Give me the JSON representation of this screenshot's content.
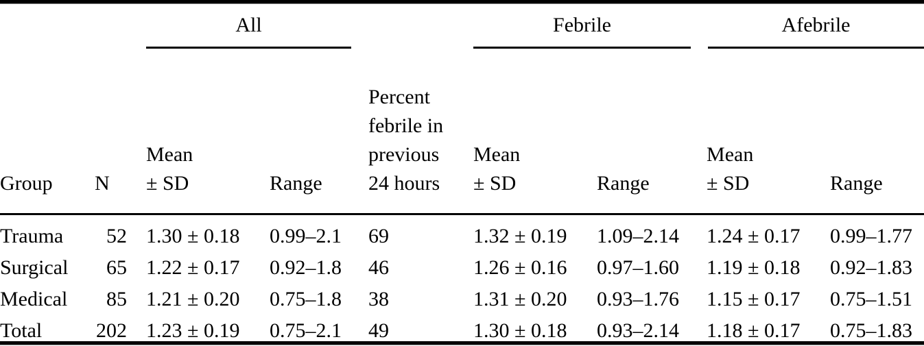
{
  "table": {
    "group_header": {
      "all": "All",
      "febrile": "Febrile",
      "afebrile": "Afebrile"
    },
    "columns": {
      "group": "Group",
      "n": "N",
      "mean_sd": "Mean\n± SD",
      "range": "Range",
      "pct_febrile": "Percent\nfebrile in\nprevious\n24 hours"
    },
    "rows": [
      {
        "group": "Trauma",
        "n": "52",
        "all_mean_sd": "1.30 ± 0.18",
        "all_range": "0.99–2.1",
        "pct_febrile": "69",
        "feb_mean_sd": "1.32 ± 0.19",
        "feb_range": "1.09–2.14",
        "afeb_mean_sd": "1.24 ± 0.17",
        "afeb_range": "0.99–1.77"
      },
      {
        "group": "Surgical",
        "n": "65",
        "all_mean_sd": "1.22 ± 0.17",
        "all_range": "0.92–1.8",
        "pct_febrile": "46",
        "feb_mean_sd": "1.26 ± 0.16",
        "feb_range": "0.97–1.60",
        "afeb_mean_sd": "1.19 ± 0.18",
        "afeb_range": "0.92–1.83"
      },
      {
        "group": "Medical",
        "n": "85",
        "all_mean_sd": "1.21 ± 0.20",
        "all_range": "0.75–1.8",
        "pct_febrile": "38",
        "feb_mean_sd": "1.31 ± 0.20",
        "feb_range": "0.93–1.76",
        "afeb_mean_sd": "1.15 ± 0.17",
        "afeb_range": "0.75–1.51"
      },
      {
        "group": "Total",
        "n": "202",
        "all_mean_sd": "1.23 ± 0.19",
        "all_range": "0.75–2.1",
        "pct_febrile": "49",
        "feb_mean_sd": "1.30 ± 0.18",
        "feb_range": "0.93–2.14",
        "afeb_mean_sd": "1.18 ± 0.17",
        "afeb_range": "0.75–1.83"
      }
    ],
    "colors": {
      "rule": "#000000",
      "text": "#000000",
      "background": "#ffffff"
    }
  }
}
